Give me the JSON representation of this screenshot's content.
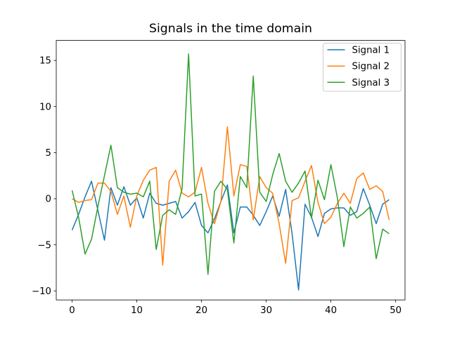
{
  "title": "Signals in the time domain",
  "chart_data": {
    "type": "line",
    "title": "Signals in the time domain",
    "xlabel": "",
    "ylabel": "",
    "grid": false,
    "legend_position": "upper right",
    "xticks": [
      0,
      10,
      20,
      30,
      40,
      50
    ],
    "yticks": [
      -10,
      -5,
      0,
      5,
      10,
      15
    ],
    "xlim": [
      -2.45,
      51.45
    ],
    "ylim": [
      -10.98,
      17.17
    ],
    "x": [
      0,
      1,
      2,
      3,
      4,
      5,
      6,
      7,
      8,
      9,
      10,
      11,
      12,
      13,
      14,
      15,
      16,
      17,
      18,
      19,
      20,
      21,
      22,
      23,
      24,
      25,
      26,
      27,
      28,
      29,
      30,
      31,
      32,
      33,
      34,
      35,
      36,
      37,
      38,
      39,
      40,
      41,
      42,
      43,
      44,
      45,
      46,
      47,
      48,
      49
    ],
    "series": [
      {
        "name": "Signal 1",
        "color": "#1f77b4",
        "values": [
          -3.4,
          -1.7,
          0.2,
          1.9,
          -1.3,
          -4.5,
          1.2,
          -0.7,
          1.3,
          -0.7,
          0.1,
          -2.1,
          0.6,
          -0.5,
          -0.7,
          -0.5,
          -0.3,
          -2.1,
          -1.4,
          -0.4,
          -2.9,
          -3.7,
          -2.2,
          -0.3,
          1.5,
          -3.7,
          -0.9,
          -0.9,
          -1.8,
          -2.9,
          -1.4,
          0.3,
          -1.9,
          1.0,
          -3.8,
          -9.9,
          -0.6,
          -2.0,
          -4.1,
          -1.6,
          -1.1,
          -1.0,
          -1.0,
          -1.8,
          -1.4,
          1.1,
          -0.7,
          -2.7,
          -0.6,
          -0.1
        ]
      },
      {
        "name": "Signal 2",
        "color": "#ff7f0e",
        "values": [
          0.0,
          -0.4,
          -0.2,
          -0.1,
          1.7,
          1.7,
          0.8,
          -1.7,
          0.3,
          -3.1,
          0.3,
          2.0,
          3.1,
          3.4,
          -7.2,
          1.9,
          3.1,
          0.6,
          0.2,
          0.7,
          3.4,
          -0.5,
          -2.7,
          -0.3,
          7.8,
          0.3,
          3.7,
          3.5,
          -2.3,
          2.4,
          1.2,
          0.6,
          -2.7,
          -7.0,
          -0.2,
          0.1,
          1.9,
          3.6,
          -0.4,
          -2.7,
          -2.0,
          -0.5,
          0.6,
          -0.5,
          2.2,
          2.8,
          1.0,
          1.4,
          0.8,
          -2.3
        ]
      },
      {
        "name": "Signal 3",
        "color": "#2ca02c",
        "values": [
          0.9,
          -2.0,
          -6.0,
          -4.4,
          -0.8,
          2.5,
          5.8,
          1.2,
          0.7,
          0.5,
          0.6,
          0.2,
          1.9,
          -5.5,
          -1.8,
          -1.2,
          -1.7,
          1.1,
          15.7,
          0.3,
          0.5,
          -8.2,
          0.8,
          1.9,
          1.0,
          -4.8,
          2.4,
          1.2,
          13.3,
          0.7,
          -0.3,
          2.6,
          4.9,
          1.9,
          0.7,
          1.7,
          3.0,
          -2.1,
          2.0,
          -0.1,
          3.7,
          0.1,
          -5.2,
          -0.9,
          -2.1,
          -1.6,
          -0.9,
          -6.5,
          -3.3,
          -3.8
        ]
      }
    ]
  }
}
